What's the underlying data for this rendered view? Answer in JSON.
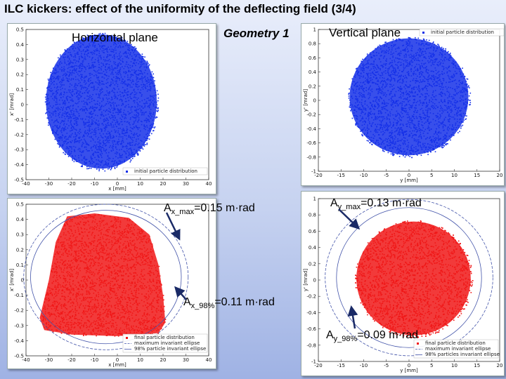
{
  "title": "ILC kickers: effect of the uniformity of the deflecting field (3/4)",
  "labels": {
    "horizontal_plane": "Horizontal plane",
    "vertical_plane": "Vertical plane",
    "geometry": "Geometry 1"
  },
  "annotations": {
    "ax_max": {
      "base": "A",
      "sub": "x_max",
      "rest": "=0.15 m·rad"
    },
    "ay_max": {
      "base": "A",
      "sub": "y_max",
      "rest": "=0.13 m·rad"
    },
    "ax_98": {
      "base": "A",
      "sub": "x_98%",
      "rest": "=0.11 m·rad"
    },
    "ay_98": {
      "base": "A",
      "sub": "y_98%",
      "rest": "=0.09 m·rad"
    }
  },
  "colors": {
    "initial": "#1530e8",
    "final": "#f01818",
    "ellipse": "#4455aa"
  },
  "chart_data": [
    {
      "type": "scatter",
      "id": "tl",
      "xlabel": "x [mm]",
      "ylabel": "x' [mrad]",
      "xlim": [
        -40,
        40
      ],
      "ylim": [
        -0.5,
        0.5
      ],
      "xticks": [
        "-40",
        "-30",
        "-20",
        "-10",
        "0",
        "10",
        "20",
        "30",
        "40"
      ],
      "yticks": [
        "0.5",
        "0.4",
        "0.3",
        "0.2",
        "0.1",
        "0",
        "-0.1",
        "-0.2",
        "-0.3",
        "-0.4",
        "-0.5"
      ],
      "legend": [
        "initial particle distribution"
      ],
      "distribution": {
        "shape": "ellipse",
        "cx": -7,
        "cy": 0.02,
        "rx": 25,
        "ry": 0.46,
        "color": "initial"
      }
    },
    {
      "type": "scatter",
      "id": "tr",
      "xlabel": "y [mm]",
      "ylabel": "y' [mrad]",
      "xlim": [
        -20,
        20
      ],
      "ylim": [
        -1,
        1
      ],
      "xticks": [
        "-20",
        "-15",
        "-10",
        "-5",
        "0",
        "5",
        "10",
        "15",
        "20"
      ],
      "yticks": [
        "1",
        "0.8",
        "0.6",
        "0.4",
        "0.2",
        "0",
        "-0.2",
        "-0.4",
        "-0.6",
        "-0.8",
        "-1"
      ],
      "legend": [
        "initial particle distribution"
      ],
      "distribution": {
        "shape": "ellipse",
        "cx": 0,
        "cy": 0.05,
        "rx": 13.5,
        "ry": 0.85,
        "color": "initial"
      }
    },
    {
      "type": "scatter",
      "id": "bl",
      "xlabel": "x [mm]",
      "ylabel": "x' [mrad]",
      "xlim": [
        -40,
        40
      ],
      "ylim": [
        -0.5,
        0.5
      ],
      "xticks": [
        "-40",
        "-30",
        "-20",
        "-10",
        "0",
        "10",
        "20",
        "30",
        "40"
      ],
      "yticks": [
        "0.5",
        "0.4",
        "0.3",
        "0.2",
        "0.1",
        "0",
        "-0.1",
        "-0.2",
        "-0.3",
        "-0.4",
        "-0.5"
      ],
      "legend": [
        "final particle distribution",
        "maximum invariant ellipse",
        "98% particle invariant ellipse"
      ],
      "distribution": {
        "shape": "trapezoid",
        "color": "final",
        "points": [
          [
            -22,
            0.42
          ],
          [
            -10,
            0.44
          ],
          [
            5,
            0.41
          ],
          [
            14,
            0.3
          ],
          [
            18,
            0.1
          ],
          [
            20,
            -0.1
          ],
          [
            21,
            -0.28
          ],
          [
            18,
            -0.35
          ],
          [
            0,
            -0.37
          ],
          [
            -20,
            -0.36
          ],
          [
            -32,
            -0.33
          ],
          [
            -34,
            -0.25
          ],
          [
            -30,
            0.0
          ],
          [
            -27,
            0.25
          ]
        ]
      },
      "ellipses": [
        {
          "cx": -5,
          "cy": 0.02,
          "rx": 36,
          "ry": 0.48
        },
        {
          "cx": -5,
          "cy": 0.02,
          "rx": 33,
          "ry": 0.44
        }
      ]
    },
    {
      "type": "scatter",
      "id": "br",
      "xlabel": "y [mm]",
      "ylabel": "y' [mrad]",
      "xlim": [
        -20,
        20
      ],
      "ylim": [
        -1,
        1
      ],
      "xticks": [
        "-20",
        "-15",
        "-10",
        "-5",
        "0",
        "5",
        "10",
        "15",
        "20"
      ],
      "yticks": [
        "1",
        "0.8",
        "0.6",
        "0.4",
        "0.2",
        "0",
        "-0.2",
        "-0.4",
        "-0.6",
        "-0.8",
        "-1"
      ],
      "legend": [
        "final particle distribution",
        "maximum invariant ellipse",
        "98% particles invariant ellipse"
      ],
      "distribution": {
        "shape": "ellipse",
        "cx": 1,
        "cy": 0.02,
        "rx": 13,
        "ry": 0.72,
        "color": "final"
      },
      "ellipses": [
        {
          "cx": 0,
          "cy": 0.03,
          "rx": 18.5,
          "ry": 0.96
        },
        {
          "cx": 0,
          "cy": 0.03,
          "rx": 16,
          "ry": 0.86
        }
      ]
    }
  ]
}
